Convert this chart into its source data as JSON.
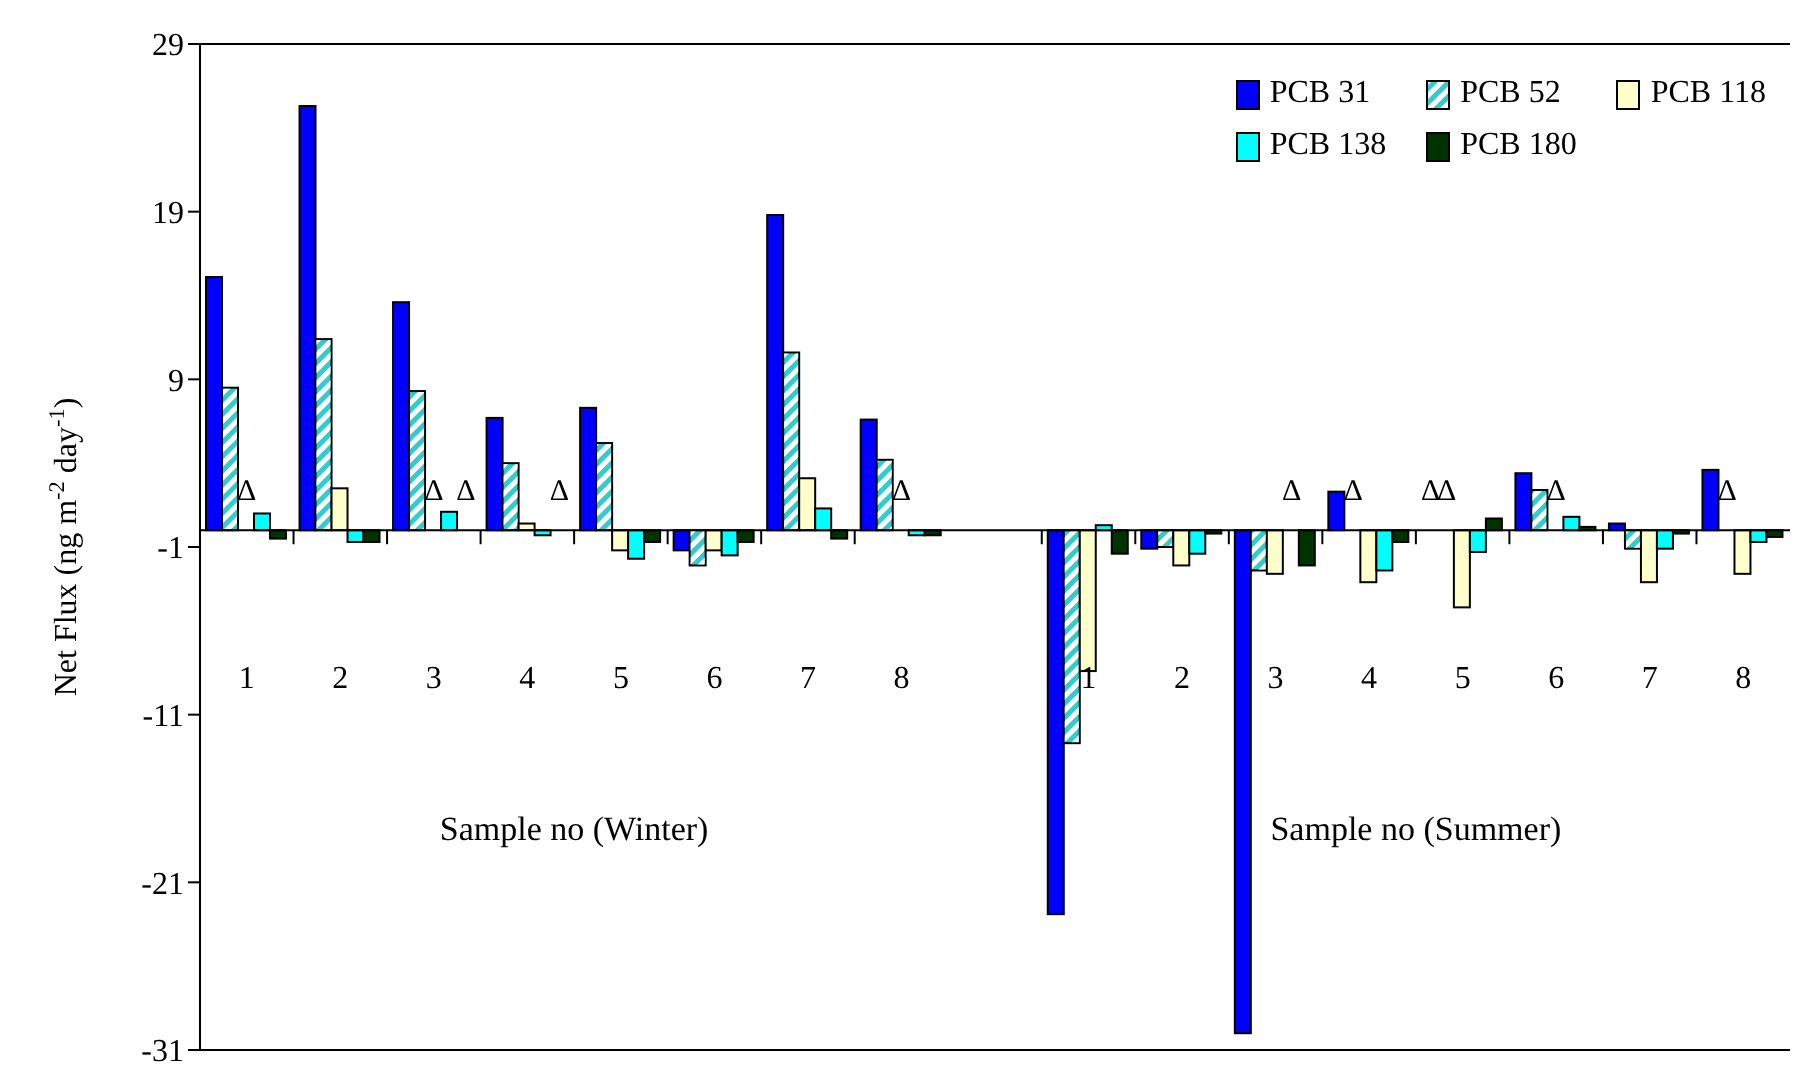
{
  "chart_data": {
    "type": "bar",
    "ylabel": "Net Flux (ng m$^{-2}$ day$^{-1}$)",
    "categories": [
      "1",
      "2",
      "3",
      "4",
      "5",
      "6",
      "7",
      "8",
      null,
      "1",
      "2",
      "3",
      "4",
      "5",
      "6",
      "7",
      "8"
    ],
    "series": [
      {
        "name": "PCB 31",
        "color": "#0000ff",
        "values": [
          15.1,
          25.3,
          13.6,
          6.7,
          7.3,
          -1.2,
          18.8,
          6.6,
          null,
          -22.9,
          -1.1,
          -30,
          2.3,
          null,
          3.4,
          0.4,
          3.6
        ],
        "value_labels": [
          null,
          null,
          null,
          null,
          null,
          null,
          null,
          null,
          null,
          null,
          null,
          null,
          null,
          "Δ",
          null,
          null,
          null
        ]
      },
      {
        "name": "PCB 52",
        "color": "#33cccc",
        "values": [
          8.5,
          11.4,
          8.3,
          4.0,
          5.2,
          -2.1,
          10.6,
          4.2,
          null,
          -12.7,
          -1.0,
          -2.4,
          null,
          null,
          2.4,
          -1.1,
          null
        ],
        "value_labels": [
          null,
          null,
          null,
          null,
          null,
          null,
          null,
          null,
          null,
          null,
          null,
          null,
          "Δ",
          "Δ",
          null,
          null,
          "Δ"
        ]
      },
      {
        "name": "PCB 118",
        "color": "#ffffcc",
        "values": [
          null,
          2.5,
          null,
          0.4,
          -1.2,
          -1.2,
          3.1,
          null,
          null,
          -8.4,
          -2.1,
          -2.6,
          -3.1,
          -4.6,
          null,
          -3.1,
          -2.6
        ],
        "value_labels": [
          "Δ",
          null,
          "Δ",
          null,
          null,
          null,
          null,
          "Δ",
          null,
          null,
          null,
          null,
          null,
          null,
          "Δ",
          null,
          null
        ]
      },
      {
        "name": "PCB 138",
        "color": "#00ffff",
        "values": [
          1.0,
          -0.7,
          1.1,
          -0.3,
          -1.7,
          -1.5,
          1.3,
          -0.3,
          null,
          0.3,
          -1.4,
          null,
          -2.4,
          -1.3,
          0.8,
          -1.1,
          -0.7
        ],
        "value_labels": [
          null,
          null,
          null,
          null,
          null,
          null,
          null,
          null,
          null,
          null,
          null,
          "Δ",
          null,
          null,
          null,
          null,
          null
        ]
      },
      {
        "name": "PCB 180",
        "color": "#003300",
        "values": [
          -0.5,
          -0.7,
          null,
          null,
          -0.7,
          -0.7,
          -0.5,
          -0.3,
          null,
          -1.4,
          -0.2,
          -2.1,
          -0.7,
          0.7,
          0.2,
          -0.2,
          -0.4
        ],
        "value_labels": [
          null,
          null,
          "Δ",
          "Δ",
          null,
          null,
          null,
          null,
          null,
          null,
          null,
          null,
          null,
          null,
          null,
          null,
          null
        ]
      }
    ],
    "annotations": [
      "Sample no (Winter)",
      "Sample no (Summer)"
    ],
    "ylim": [
      -31,
      29
    ],
    "yticks": [
      29,
      19,
      9,
      -1,
      -11,
      -21,
      -31
    ],
    "grid": false,
    "legend": "top right"
  }
}
